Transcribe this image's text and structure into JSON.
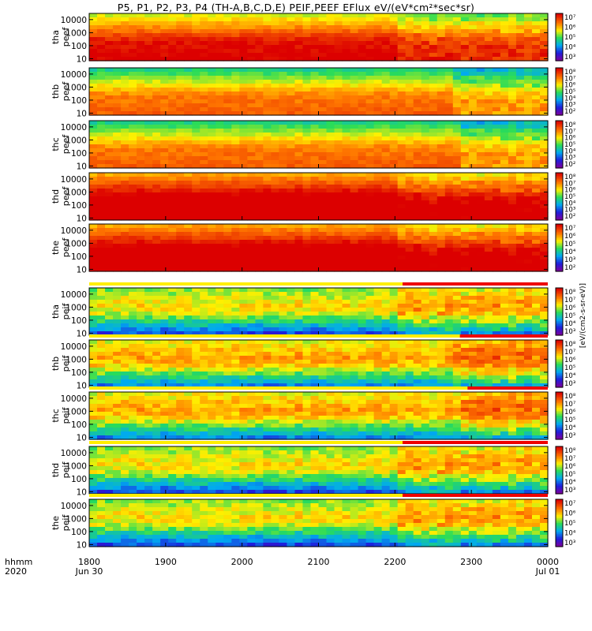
{
  "title": "P5, P1, P2, P3, P4 (TH-A,B,C,D,E) PEIF,PEEF EFlux eV/(eV*cm²*sec*sr)",
  "time_axis": {
    "row1_label": "hhmm",
    "row2_label": "2020",
    "ticks": [
      "1800",
      "1900",
      "2000",
      "2100",
      "2200",
      "2300",
      "0000"
    ],
    "date_left": "Jun 30",
    "date_right": "Jul 01"
  },
  "colorbar_unit": "[eV/(cm2-s-sr-eV)]",
  "colors": {
    "low": "#2222cc",
    "mid": "#22cc66",
    "high": "#ffee22",
    "max": "#dd1111",
    "sat_red": "#ee0000",
    "sat_yellow": "#ffee00"
  },
  "chart_data": {
    "type": "heatmap",
    "x_range_hours": [
      18.0,
      24.0
    ],
    "y_scale": "log",
    "y_range_eV": [
      7,
      30000
    ],
    "y_ticks": [
      "10000",
      "1000",
      "100",
      "10"
    ],
    "panels": [
      {
        "probe": "tha",
        "quantity": "peef",
        "cbar_ticks": [
          "10⁷",
          "10⁶",
          "10⁵",
          "10⁴",
          "10³"
        ],
        "flux_level": 0.72,
        "change_hour": 22.0
      },
      {
        "probe": "thb",
        "quantity": "peef",
        "cbar_ticks": [
          "10⁸",
          "10⁷",
          "10⁶",
          "10⁵",
          "10⁴",
          "10³",
          "10²"
        ],
        "flux_level": 0.55,
        "change_hour": 22.75
      },
      {
        "probe": "thc",
        "quantity": "peef",
        "cbar_ticks": [
          "10⁸",
          "10⁷",
          "10⁶",
          "10⁵",
          "10⁴",
          "10³",
          "10²"
        ],
        "flux_level": 0.55,
        "change_hour": 22.85
      },
      {
        "probe": "thd",
        "quantity": "peef",
        "cbar_ticks": [
          "10⁸",
          "10⁷",
          "10⁶",
          "10⁵",
          "10⁴",
          "10³",
          "10²"
        ],
        "flux_level": 0.85,
        "change_hour": 22.0
      },
      {
        "probe": "the",
        "quantity": "peef",
        "cbar_ticks": [
          "10⁷",
          "10⁶",
          "10⁵",
          "10⁴",
          "10³",
          "10²"
        ],
        "flux_level": 0.85,
        "change_hour": 22.0
      },
      {
        "probe": "tha",
        "quantity": "peif",
        "cbar_ticks": [
          "10⁸",
          "10⁷",
          "10⁶",
          "10⁵",
          "10⁴",
          "10³"
        ],
        "flux_level": 0.42,
        "change_hour": 22.0
      },
      {
        "probe": "thb",
        "quantity": "peif",
        "cbar_ticks": [
          "10⁸",
          "10⁷",
          "10⁶",
          "10⁵",
          "10⁴",
          "10³"
        ],
        "flux_level": 0.5,
        "change_hour": 22.75
      },
      {
        "probe": "thc",
        "quantity": "peif",
        "cbar_ticks": [
          "10⁸",
          "10⁷",
          "10⁶",
          "10⁵",
          "10⁴",
          "10³"
        ],
        "flux_level": 0.5,
        "change_hour": 22.85
      },
      {
        "probe": "thd",
        "quantity": "peif",
        "cbar_ticks": [
          "10⁸",
          "10⁷",
          "10⁶",
          "10⁵",
          "10⁴",
          "10³"
        ],
        "flux_level": 0.42,
        "change_hour": 22.0
      },
      {
        "probe": "the",
        "quantity": "peif",
        "cbar_ticks": [
          "10⁷",
          "10⁶",
          "10⁵",
          "10⁴",
          "10³"
        ],
        "flux_level": 0.42,
        "change_hour": 22.0
      }
    ]
  }
}
